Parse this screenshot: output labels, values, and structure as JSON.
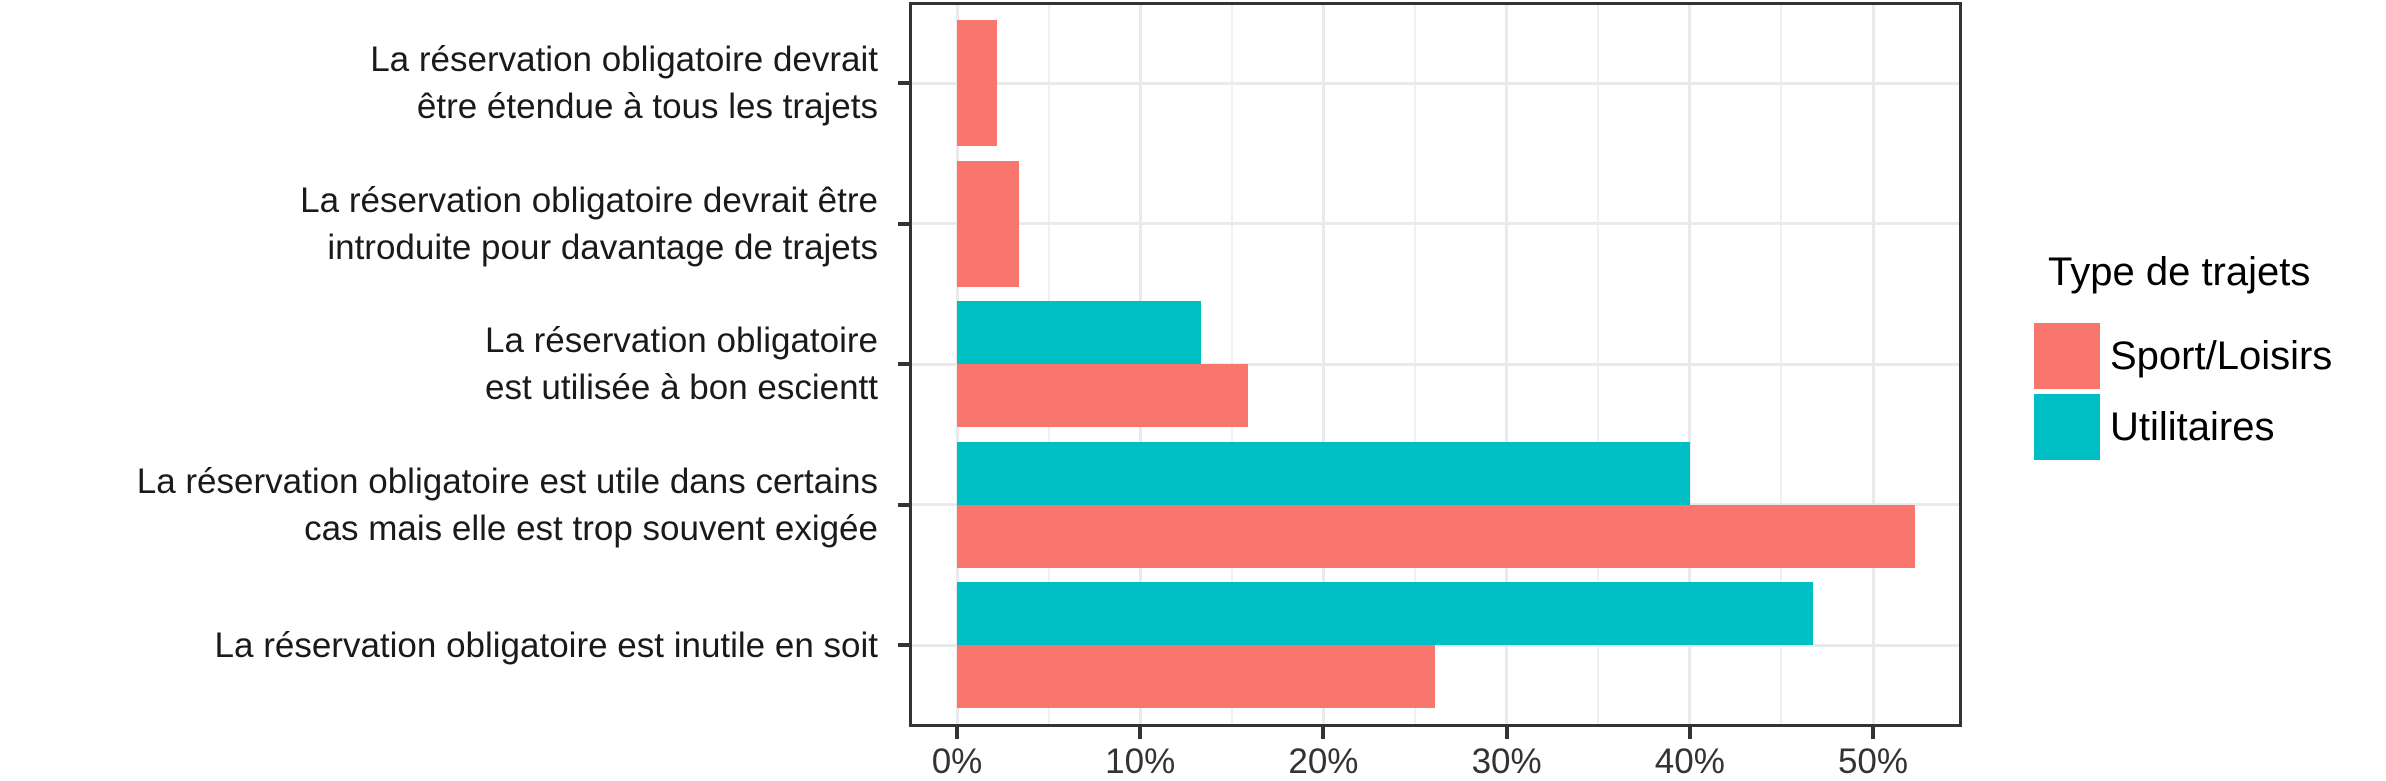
{
  "chart_data": {
    "type": "bar",
    "orientation": "horizontal",
    "title": "",
    "xlabel": "",
    "ylabel": "",
    "categories": [
      [
        "La réservation obligatoire devrait",
        "être étendue à tous les trajets"
      ],
      [
        "La réservation obligatoire devrait être",
        "introduite pour davantage de trajets"
      ],
      [
        "La réservation obligatoire",
        "est utilisée à bon escientt"
      ],
      [
        "La réservation obligatoire est utile dans certains",
        "cas mais elle est trop souvent exigée"
      ],
      [
        "La réservation obligatoire est inutile en soit"
      ]
    ],
    "series": [
      {
        "name": "Sport/Loisirs",
        "color": "#F8766D",
        "values": [
          2.2,
          3.4,
          15.9,
          52.3,
          26.1
        ]
      },
      {
        "name": "Utilitaires",
        "color": "#00BFC4",
        "values": [
          null,
          null,
          13.3,
          40.0,
          46.7
        ]
      }
    ],
    "value_unit": "%",
    "x_ticks": [
      {
        "label": "0%",
        "value": 0
      },
      {
        "label": "10%",
        "value": 10
      },
      {
        "label": "20%",
        "value": 20
      },
      {
        "label": "30%",
        "value": 30
      },
      {
        "label": "40%",
        "value": 40
      },
      {
        "label": "50%",
        "value": 50
      }
    ],
    "xlim": [
      -2.6,
      54.9
    ],
    "grid": {
      "major_step": 10,
      "minor_step": 5,
      "grid_on": true
    },
    "legend": {
      "title": "Type de trajets",
      "position": "right",
      "entries": [
        {
          "label": "Sport/Loisirs",
          "color": "#F8766D"
        },
        {
          "label": "Utilitaires",
          "color": "#00BFC4"
        }
      ]
    }
  }
}
